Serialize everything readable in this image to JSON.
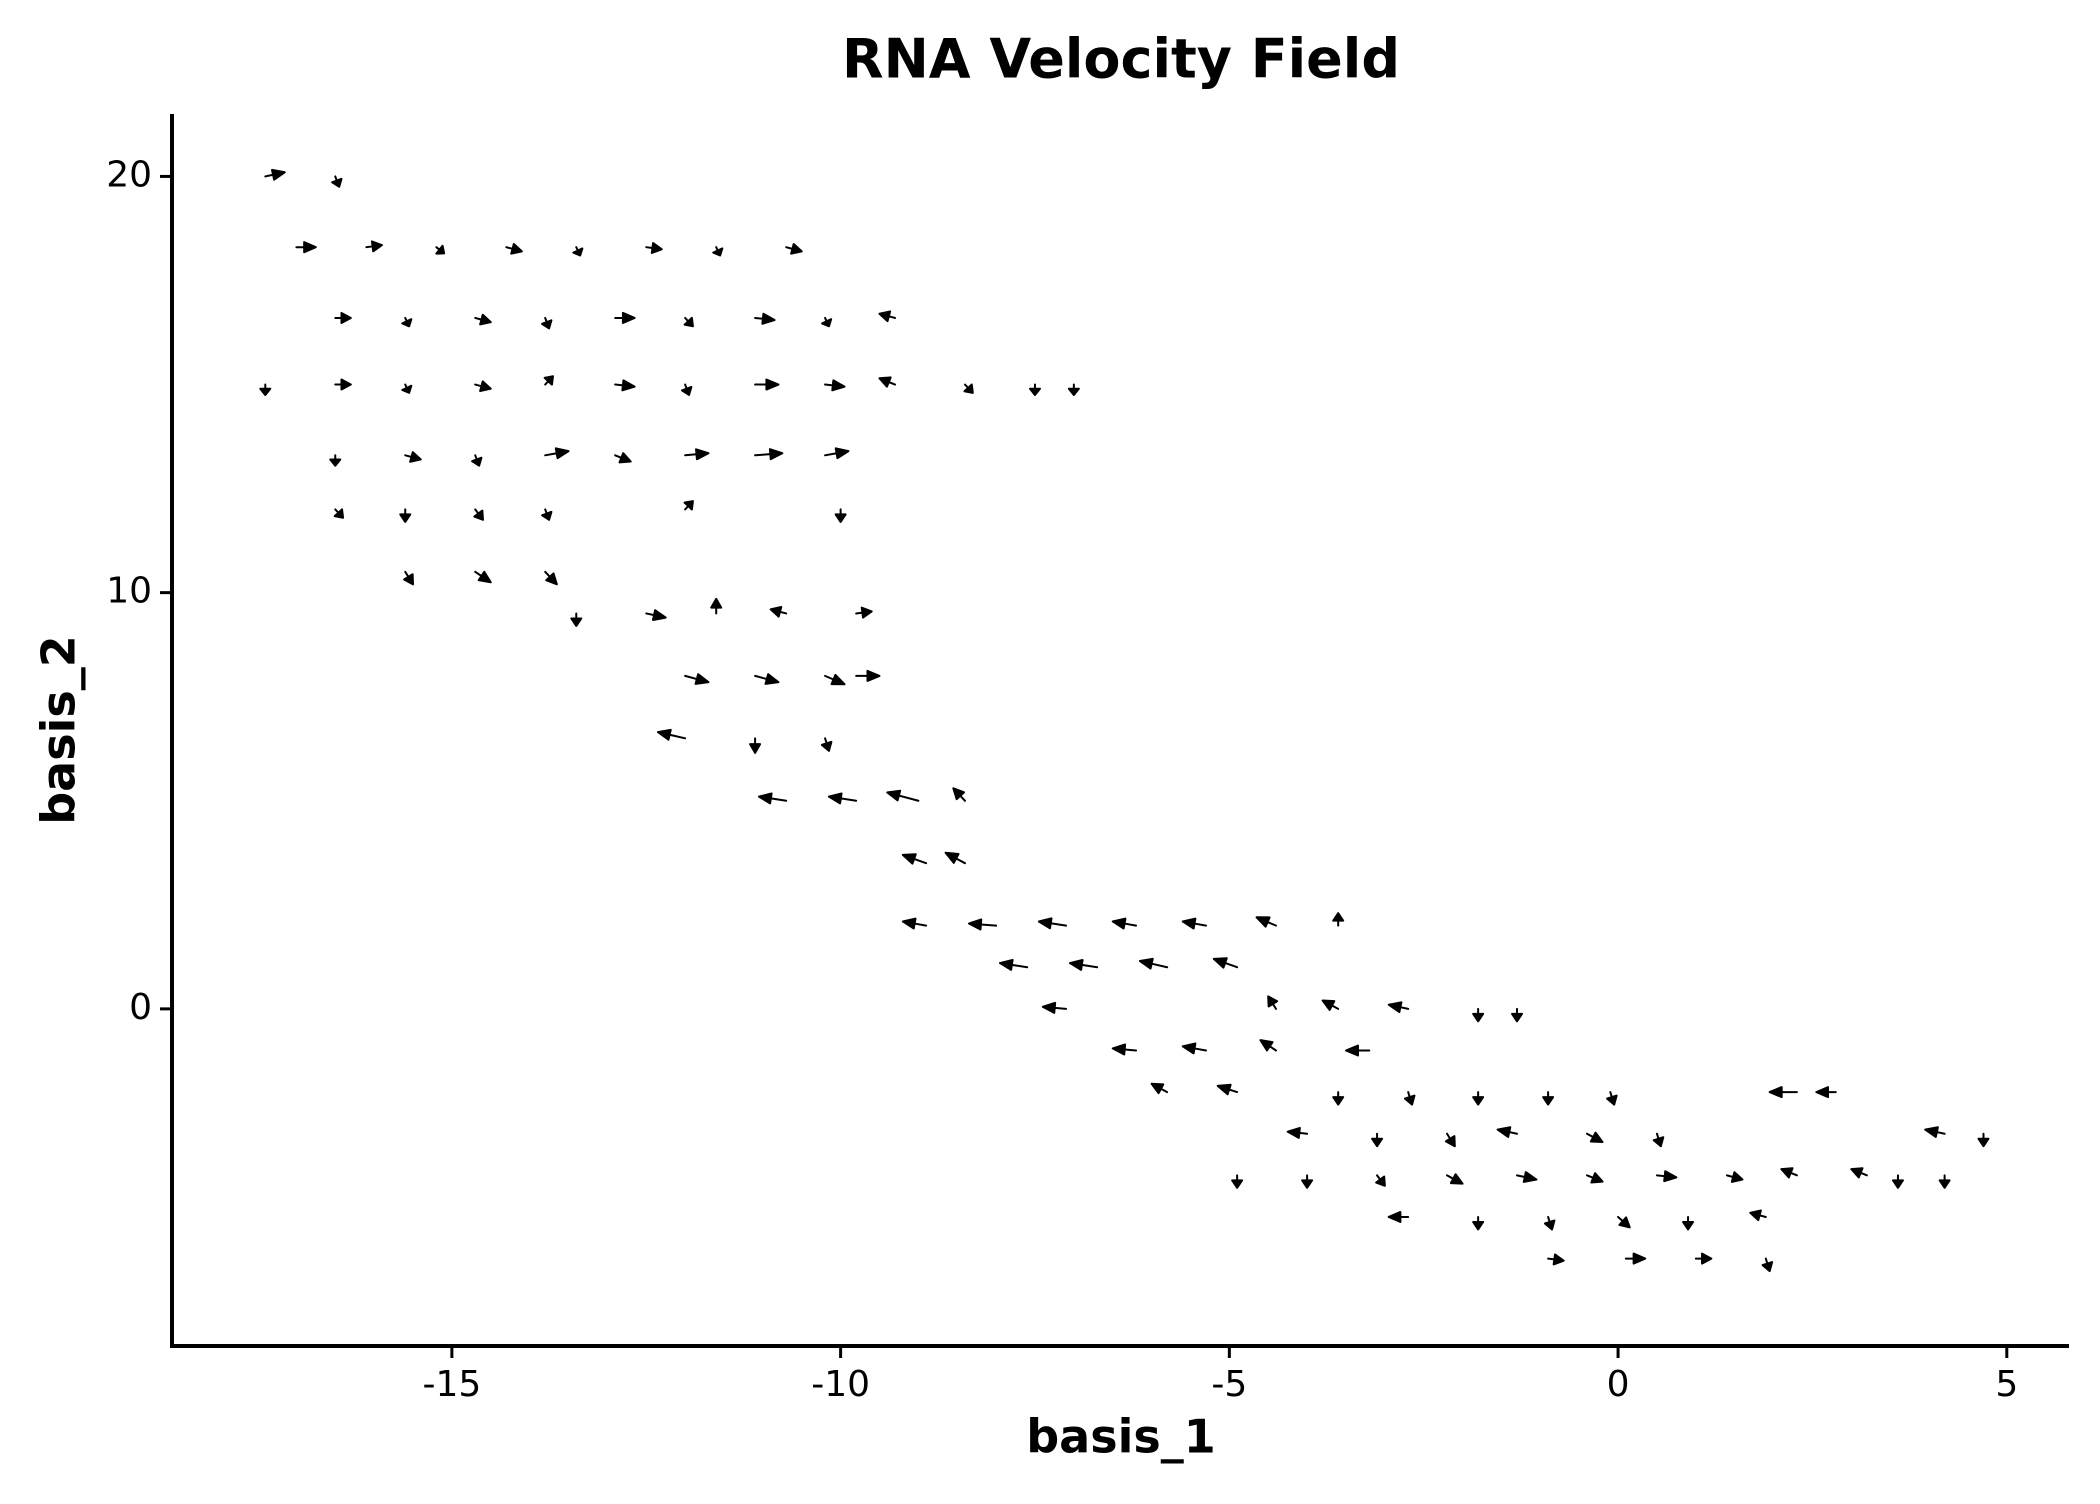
{
  "chart_data": {
    "type": "quiver",
    "title": "RNA Velocity Field",
    "x_label": "basis_1",
    "y_label": "basis_2",
    "xlim": [
      -18.6,
      5.8
    ],
    "ylim": [
      -8.1,
      21.5
    ],
    "xticks": [
      -15,
      -10,
      -5,
      0,
      5
    ],
    "yticks": [
      0,
      10,
      20
    ],
    "color": "#000000",
    "points": [
      {
        "x": -17.4,
        "y": 20,
        "u": 0.25,
        "v": 0.1
      },
      {
        "x": -16.5,
        "y": 20,
        "u": 0.05,
        "v": -0.25
      },
      {
        "x": -17,
        "y": 18.3,
        "u": 0.25,
        "v": 0
      },
      {
        "x": -16.1,
        "y": 18.3,
        "u": 0.2,
        "v": 0.05
      },
      {
        "x": -15.2,
        "y": 18.3,
        "u": 0.1,
        "v": -0.15
      },
      {
        "x": -14.3,
        "y": 18.3,
        "u": 0.2,
        "v": -0.1
      },
      {
        "x": -13.4,
        "y": 18.3,
        "u": 0.05,
        "v": -0.2
      },
      {
        "x": -12.5,
        "y": 18.3,
        "u": 0.2,
        "v": -0.05
      },
      {
        "x": -11.6,
        "y": 18.3,
        "u": 0.05,
        "v": -0.2
      },
      {
        "x": -10.7,
        "y": 18.3,
        "u": 0.2,
        "v": -0.1
      },
      {
        "x": -16.5,
        "y": 16.6,
        "u": 0.2,
        "v": 0
      },
      {
        "x": -15.6,
        "y": 16.6,
        "u": 0.05,
        "v": -0.2
      },
      {
        "x": -14.7,
        "y": 16.6,
        "u": 0.2,
        "v": -0.1
      },
      {
        "x": -13.8,
        "y": 16.6,
        "u": 0.05,
        "v": -0.25
      },
      {
        "x": -12.9,
        "y": 16.6,
        "u": 0.25,
        "v": 0
      },
      {
        "x": -12.0,
        "y": 16.6,
        "u": 0.1,
        "v": -0.2
      },
      {
        "x": -11.1,
        "y": 16.6,
        "u": 0.25,
        "v": -0.05
      },
      {
        "x": -10.2,
        "y": 16.6,
        "u": 0.05,
        "v": -0.2
      },
      {
        "x": -9.3,
        "y": 16.6,
        "u": -0.2,
        "v": 0.1
      },
      {
        "x": -17.4,
        "y": 15,
        "u": 0,
        "v": -0.25
      },
      {
        "x": -16.5,
        "y": 15,
        "u": 0.2,
        "v": 0
      },
      {
        "x": -15.6,
        "y": 15,
        "u": 0.05,
        "v": -0.2
      },
      {
        "x": -14.7,
        "y": 15,
        "u": 0.2,
        "v": -0.1
      },
      {
        "x": -13.8,
        "y": 15,
        "u": 0.1,
        "v": 0.2
      },
      {
        "x": -12.9,
        "y": 15,
        "u": 0.25,
        "v": -0.05
      },
      {
        "x": -12.0,
        "y": 15,
        "u": 0.05,
        "v": -0.25
      },
      {
        "x": -11.1,
        "y": 15,
        "u": 0.3,
        "v": 0
      },
      {
        "x": -10.2,
        "y": 15,
        "u": 0.25,
        "v": -0.05
      },
      {
        "x": -9.3,
        "y": 15,
        "u": -0.2,
        "v": 0.15
      },
      {
        "x": -8.4,
        "y": 15,
        "u": 0.1,
        "v": -0.2
      },
      {
        "x": -7.5,
        "y": 15,
        "u": 0,
        "v": -0.25
      },
      {
        "x": -7.0,
        "y": 15,
        "u": 0,
        "v": -0.25
      },
      {
        "x": -16.5,
        "y": 13.3,
        "u": 0,
        "v": -0.25
      },
      {
        "x": -15.6,
        "y": 13.3,
        "u": 0.2,
        "v": -0.1
      },
      {
        "x": -14.7,
        "y": 13.3,
        "u": 0.05,
        "v": -0.25
      },
      {
        "x": -13.8,
        "y": 13.3,
        "u": 0.3,
        "v": 0.1
      },
      {
        "x": -12.9,
        "y": 13.3,
        "u": 0.2,
        "v": -0.15
      },
      {
        "x": -12.0,
        "y": 13.3,
        "u": 0.3,
        "v": 0.05
      },
      {
        "x": -11.1,
        "y": 13.3,
        "u": 0.35,
        "v": 0.05
      },
      {
        "x": -10.2,
        "y": 13.3,
        "u": 0.3,
        "v": 0.1
      },
      {
        "x": -16.5,
        "y": 12,
        "u": 0.1,
        "v": -0.2
      },
      {
        "x": -15.6,
        "y": 12,
        "u": 0,
        "v": -0.3
      },
      {
        "x": -14.7,
        "y": 12,
        "u": 0.1,
        "v": -0.25
      },
      {
        "x": -13.8,
        "y": 12,
        "u": 0.05,
        "v": -0.25
      },
      {
        "x": -12.0,
        "y": 12,
        "u": 0.1,
        "v": 0.2
      },
      {
        "x": -10.0,
        "y": 12,
        "u": 0,
        "v": -0.3
      },
      {
        "x": -15.6,
        "y": 10.5,
        "u": 0.1,
        "v": -0.3
      },
      {
        "x": -14.7,
        "y": 10.5,
        "u": 0.2,
        "v": -0.25
      },
      {
        "x": -13.8,
        "y": 10.5,
        "u": 0.15,
        "v": -0.3
      },
      {
        "x": -13.4,
        "y": 9.5,
        "u": 0,
        "v": -0.3
      },
      {
        "x": -12.5,
        "y": 9.5,
        "u": 0.25,
        "v": -0.1
      },
      {
        "x": -11.6,
        "y": 9.5,
        "u": 0,
        "v": 0.35
      },
      {
        "x": -10.7,
        "y": 9.5,
        "u": -0.2,
        "v": 0.1
      },
      {
        "x": -9.8,
        "y": 9.5,
        "u": 0.2,
        "v": 0.05
      },
      {
        "x": -12.0,
        "y": 8,
        "u": 0.3,
        "v": -0.15
      },
      {
        "x": -11.1,
        "y": 8,
        "u": 0.3,
        "v": -0.15
      },
      {
        "x": -10.2,
        "y": 8,
        "u": 0.25,
        "v": -0.2
      },
      {
        "x": -9.8,
        "y": 8,
        "u": 0.3,
        "v": 0
      },
      {
        "x": -12.0,
        "y": 6.5,
        "u": -0.35,
        "v": 0.15
      },
      {
        "x": -11.1,
        "y": 6.5,
        "u": 0,
        "v": -0.35
      },
      {
        "x": -10.2,
        "y": 6.5,
        "u": 0.05,
        "v": -0.3
      },
      {
        "x": -10.7,
        "y": 5,
        "u": -0.35,
        "v": 0.1
      },
      {
        "x": -9.8,
        "y": 5,
        "u": -0.35,
        "v": 0.1
      },
      {
        "x": -9.0,
        "y": 5,
        "u": -0.4,
        "v": 0.2
      },
      {
        "x": -8.4,
        "y": 5,
        "u": -0.15,
        "v": 0.3
      },
      {
        "x": -8.9,
        "y": 3.5,
        "u": -0.3,
        "v": 0.2
      },
      {
        "x": -8.4,
        "y": 3.5,
        "u": -0.25,
        "v": 0.25
      },
      {
        "x": -8.9,
        "y": 2,
        "u": -0.3,
        "v": 0.1
      },
      {
        "x": -8.0,
        "y": 2,
        "u": -0.35,
        "v": 0.05
      },
      {
        "x": -7.1,
        "y": 2,
        "u": -0.35,
        "v": 0.1
      },
      {
        "x": -6.2,
        "y": 2,
        "u": -0.3,
        "v": 0.1
      },
      {
        "x": -5.3,
        "y": 2,
        "u": -0.3,
        "v": 0.1
      },
      {
        "x": -4.4,
        "y": 2,
        "u": -0.25,
        "v": 0.2
      },
      {
        "x": -3.6,
        "y": 2,
        "u": 0,
        "v": 0.3
      },
      {
        "x": -7.6,
        "y": 1,
        "u": -0.35,
        "v": 0.1
      },
      {
        "x": -6.7,
        "y": 1,
        "u": -0.35,
        "v": 0.1
      },
      {
        "x": -5.8,
        "y": 1,
        "u": -0.35,
        "v": 0.15
      },
      {
        "x": -4.9,
        "y": 1,
        "u": -0.3,
        "v": 0.2
      },
      {
        "x": -7.1,
        "y": 0,
        "u": -0.3,
        "v": 0.05
      },
      {
        "x": -4.4,
        "y": 0,
        "u": -0.1,
        "v": 0.3
      },
      {
        "x": -3.6,
        "y": 0,
        "u": -0.2,
        "v": 0.2
      },
      {
        "x": -2.7,
        "y": 0,
        "u": -0.25,
        "v": 0.1
      },
      {
        "x": -1.8,
        "y": 0,
        "u": 0,
        "v": -0.3
      },
      {
        "x": -1.3,
        "y": 0,
        "u": 0,
        "v": -0.3
      },
      {
        "x": -6.2,
        "y": -1,
        "u": -0.3,
        "v": 0.05
      },
      {
        "x": -5.3,
        "y": -1,
        "u": -0.3,
        "v": 0.1
      },
      {
        "x": -4.4,
        "y": -1,
        "u": -0.2,
        "v": 0.25
      },
      {
        "x": -3.2,
        "y": -1,
        "u": -0.3,
        "v": 0
      },
      {
        "x": -5.8,
        "y": -2,
        "u": -0.2,
        "v": 0.2
      },
      {
        "x": -4.9,
        "y": -2,
        "u": -0.25,
        "v": 0.15
      },
      {
        "x": -3.6,
        "y": -2,
        "u": 0,
        "v": -0.3
      },
      {
        "x": -2.7,
        "y": -2,
        "u": 0.05,
        "v": -0.3
      },
      {
        "x": -1.8,
        "y": -2,
        "u": 0,
        "v": -0.3
      },
      {
        "x": -0.9,
        "y": -2,
        "u": 0,
        "v": -0.3
      },
      {
        "x": -0.1,
        "y": -2,
        "u": 0.05,
        "v": -0.3
      },
      {
        "x": 2.3,
        "y": -2,
        "u": -0.35,
        "v": 0
      },
      {
        "x": 2.8,
        "y": -2,
        "u": -0.25,
        "v": 0
      },
      {
        "x": -4.0,
        "y": -3,
        "u": -0.25,
        "v": 0.05
      },
      {
        "x": -3.1,
        "y": -3,
        "u": 0,
        "v": -0.3
      },
      {
        "x": -2.2,
        "y": -3,
        "u": 0.1,
        "v": -0.3
      },
      {
        "x": -1.3,
        "y": -3,
        "u": -0.25,
        "v": 0.1
      },
      {
        "x": -0.4,
        "y": -3,
        "u": 0.2,
        "v": -0.2
      },
      {
        "x": 0.5,
        "y": -3,
        "u": 0.05,
        "v": -0.3
      },
      {
        "x": 4.2,
        "y": -3,
        "u": -0.25,
        "v": 0.1
      },
      {
        "x": 4.7,
        "y": -3,
        "u": 0,
        "v": -0.3
      },
      {
        "x": -4.9,
        "y": -4,
        "u": 0,
        "v": -0.3
      },
      {
        "x": -4.0,
        "y": -4,
        "u": 0,
        "v": -0.3
      },
      {
        "x": -3.1,
        "y": -4,
        "u": 0.1,
        "v": -0.25
      },
      {
        "x": -2.2,
        "y": -4,
        "u": 0.2,
        "v": -0.2
      },
      {
        "x": -1.3,
        "y": -4,
        "u": 0.25,
        "v": -0.1
      },
      {
        "x": -0.4,
        "y": -4,
        "u": 0.2,
        "v": -0.15
      },
      {
        "x": 0.5,
        "y": -4,
        "u": 0.25,
        "v": -0.05
      },
      {
        "x": 1.4,
        "y": -4,
        "u": 0.2,
        "v": -0.1
      },
      {
        "x": 2.3,
        "y": -4,
        "u": -0.2,
        "v": 0.15
      },
      {
        "x": 3.2,
        "y": -4,
        "u": -0.2,
        "v": 0.15
      },
      {
        "x": 3.6,
        "y": -4,
        "u": 0,
        "v": -0.3
      },
      {
        "x": 4.2,
        "y": -4,
        "u": 0,
        "v": -0.3
      },
      {
        "x": -2.7,
        "y": -5,
        "u": -0.25,
        "v": 0
      },
      {
        "x": -1.8,
        "y": -5,
        "u": 0,
        "v": -0.3
      },
      {
        "x": -0.9,
        "y": -5,
        "u": 0.05,
        "v": -0.3
      },
      {
        "x": 0,
        "y": -5,
        "u": 0.15,
        "v": -0.25
      },
      {
        "x": 0.9,
        "y": -5,
        "u": 0,
        "v": -0.3
      },
      {
        "x": 1.9,
        "y": -5,
        "u": -0.2,
        "v": 0.1
      },
      {
        "x": -0.9,
        "y": -6,
        "u": 0.2,
        "v": -0.05
      },
      {
        "x": 0.1,
        "y": -6,
        "u": 0.25,
        "v": 0
      },
      {
        "x": 1.0,
        "y": -6,
        "u": 0.2,
        "v": 0
      },
      {
        "x": 1.9,
        "y": -6,
        "u": 0.05,
        "v": -0.3
      }
    ]
  }
}
